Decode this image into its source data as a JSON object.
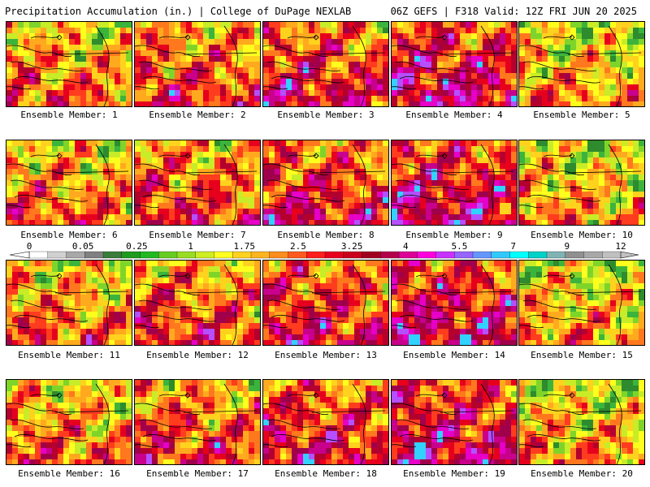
{
  "header": {
    "title_left": "Precipitation Accumulation (in.) | College of DuPage NEXLAB",
    "title_right": "06Z GEFS | F318 Valid: 12Z FRI JUN 20 2025"
  },
  "colorbar": {
    "labels": [
      "0",
      "0.05",
      "0.25",
      "1",
      "1.75",
      "2.5",
      "3.25",
      "4",
      "5.5",
      "7",
      "9",
      "12"
    ],
    "colors": [
      "#ffffff",
      "#d0d0d0",
      "#a8a8a8",
      "#808080",
      "#3a7d3a",
      "#1e9b1e",
      "#22b822",
      "#66cc22",
      "#99dd22",
      "#ccee22",
      "#ffff22",
      "#ffd21e",
      "#ffb41e",
      "#ff8c1e",
      "#ff5a1e",
      "#ff1e1e",
      "#e6001e",
      "#c8001e",
      "#a0001e",
      "#b4004b",
      "#dc0096",
      "#ff00dc",
      "#c832ff",
      "#9664ff",
      "#6496ff",
      "#32c8ff",
      "#00ffff",
      "#00d2c8",
      "#80b4b4",
      "#909090",
      "#a8a8a8",
      "#c0c0c0"
    ]
  },
  "members": [
    {
      "label": "Ensemble Member: 1"
    },
    {
      "label": "Ensemble Member: 2"
    },
    {
      "label": "Ensemble Member: 3"
    },
    {
      "label": "Ensemble Member: 4"
    },
    {
      "label": "Ensemble Member: 5"
    },
    {
      "label": "Ensemble Member: 6"
    },
    {
      "label": "Ensemble Member: 7"
    },
    {
      "label": "Ensemble Member: 8"
    },
    {
      "label": "Ensemble Member: 9"
    },
    {
      "label": "Ensemble Member: 10"
    },
    {
      "label": "Ensemble Member: 11"
    },
    {
      "label": "Ensemble Member: 12"
    },
    {
      "label": "Ensemble Member: 13"
    },
    {
      "label": "Ensemble Member: 14"
    },
    {
      "label": "Ensemble Member: 15"
    },
    {
      "label": "Ensemble Member: 16"
    },
    {
      "label": "Ensemble Member: 17"
    },
    {
      "label": "Ensemble Member: 18"
    },
    {
      "label": "Ensemble Member: 19"
    },
    {
      "label": "Ensemble Member: 20"
    }
  ]
}
